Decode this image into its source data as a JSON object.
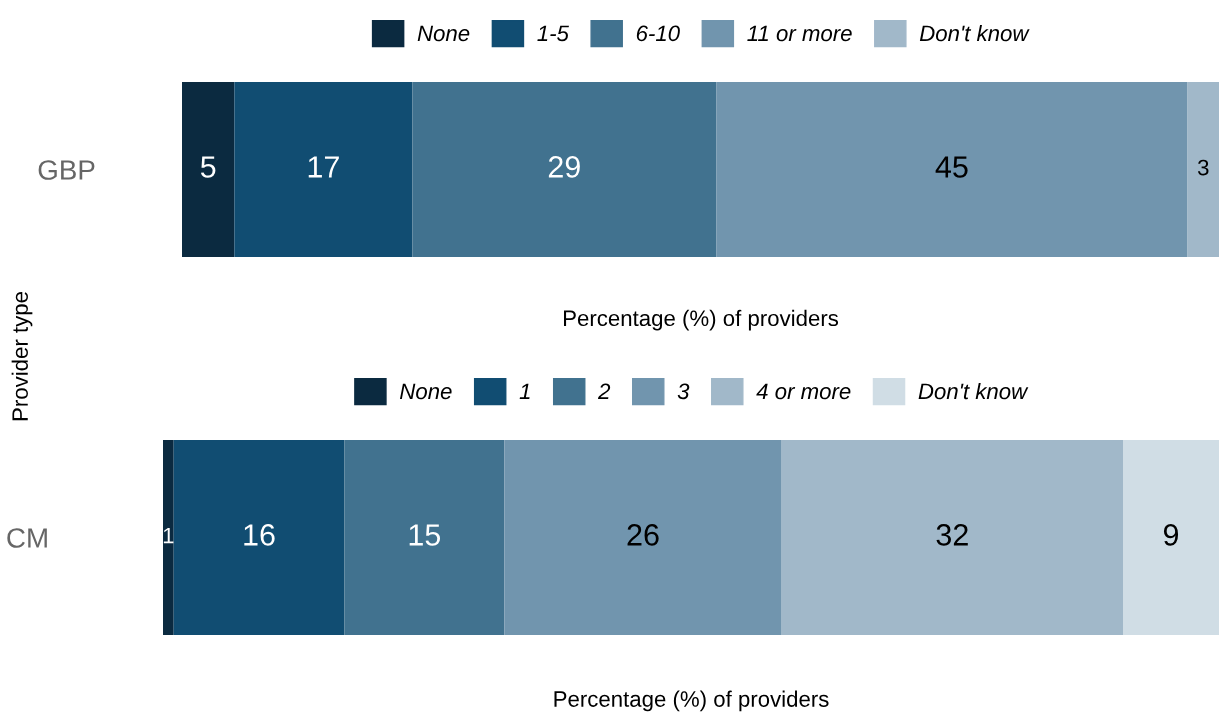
{
  "chart_data": [
    {
      "type": "bar",
      "orientation": "horizontal",
      "stacked": true,
      "data_labels": true,
      "legend": "top",
      "tick_labels": "y",
      "grid": false,
      "ylabel": "Provider type",
      "xlabel": "Percentage (%) of providers",
      "categories": [
        "GBP"
      ],
      "series": [
        {
          "name": "None",
          "color": "#0b2a40",
          "values": [
            5
          ]
        },
        {
          "name": "1-5",
          "color": "#114d72",
          "values": [
            17
          ]
        },
        {
          "name": "6-10",
          "color": "#41728f",
          "values": [
            29
          ]
        },
        {
          "name": "11 or more",
          "color": "#7195ae",
          "values": [
            45
          ]
        },
        {
          "name": "Don't know",
          "color": "#a1b8c9",
          "values": [
            3
          ]
        }
      ]
    },
    {
      "type": "bar",
      "orientation": "horizontal",
      "stacked": true,
      "data_labels": true,
      "legend": "top",
      "tick_labels": "y",
      "grid": false,
      "xlabel": "Percentage (%) of providers",
      "categories": [
        "CM"
      ],
      "series": [
        {
          "name": "None",
          "color": "#0b2a40",
          "values": [
            1
          ]
        },
        {
          "name": "1",
          "color": "#114d72",
          "values": [
            16
          ]
        },
        {
          "name": "2",
          "color": "#41728f",
          "values": [
            15
          ]
        },
        {
          "name": "3",
          "color": "#7195ae",
          "values": [
            26
          ]
        },
        {
          "name": "4 or more",
          "color": "#a1b8c9",
          "values": [
            32
          ]
        },
        {
          "name": "Don't know",
          "color": "#d0dde5",
          "values": [
            9
          ]
        }
      ]
    }
  ]
}
